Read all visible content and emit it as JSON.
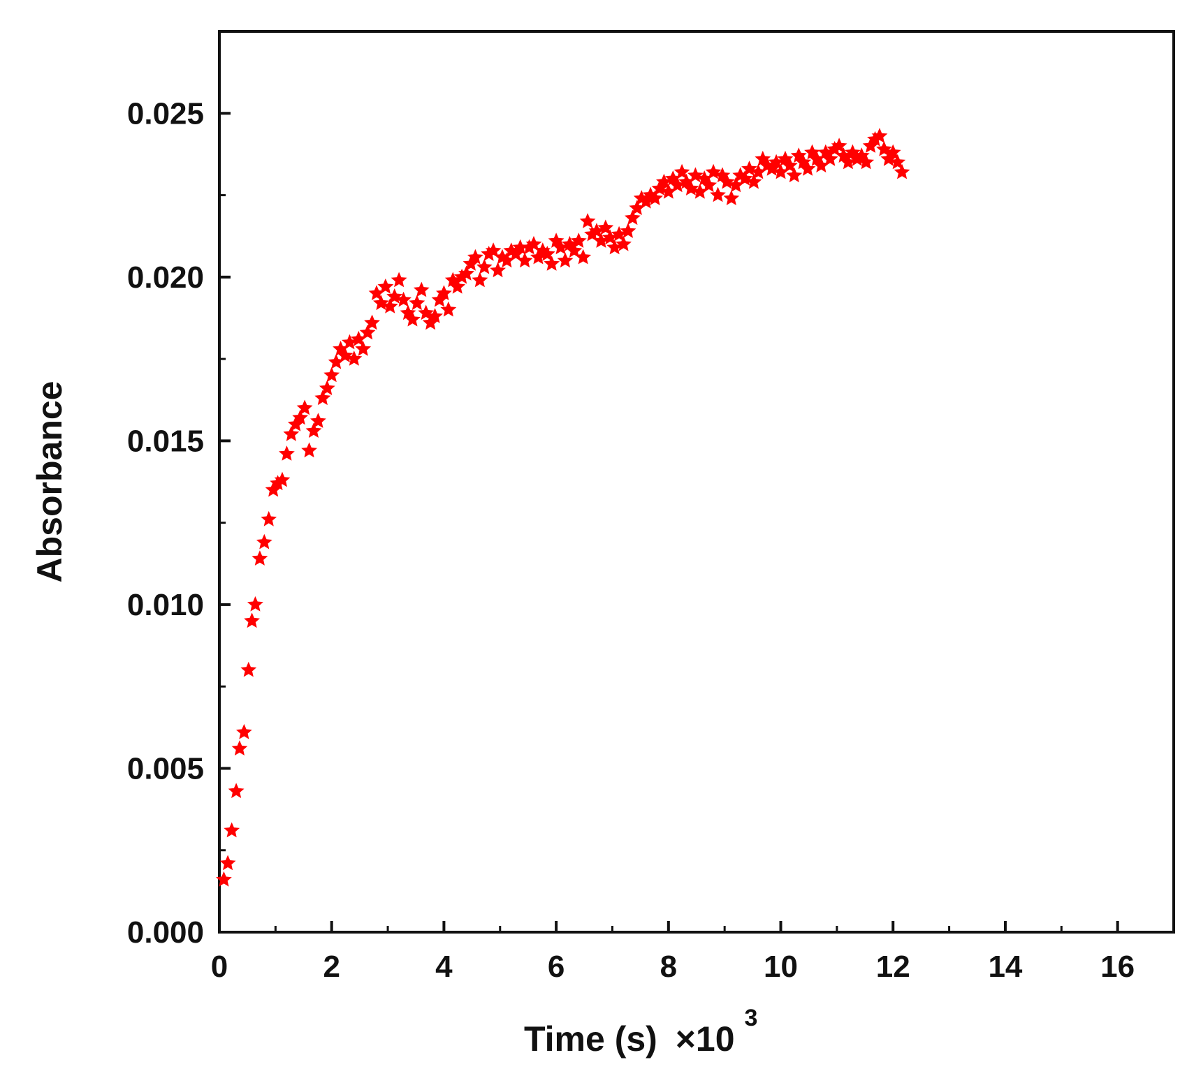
{
  "chart_data": {
    "type": "scatter",
    "title": "",
    "xlabel": "Time (s)",
    "xlabel_multiplier": "×10",
    "xlabel_exponent": "3",
    "ylabel": "Absorbance",
    "xlim": [
      0,
      17
    ],
    "ylim": [
      0,
      0.0275
    ],
    "x_ticks": [
      0,
      2,
      4,
      6,
      8,
      10,
      12,
      14,
      16
    ],
    "x_tick_labels": [
      "0",
      "2",
      "4",
      "6",
      "8",
      "10",
      "12",
      "14",
      "16"
    ],
    "y_ticks": [
      0.0,
      0.005,
      0.01,
      0.015,
      0.02,
      0.025
    ],
    "y_tick_labels": [
      "0.000",
      "0.005",
      "0.010",
      "0.015",
      "0.020",
      "0.025"
    ],
    "grid": false,
    "legend": "none",
    "marker": "star",
    "colors": {
      "series": "#ff0000",
      "axis": "#111111"
    },
    "series": [
      {
        "x": [
          0.08,
          0.15,
          0.22,
          0.3,
          0.36,
          0.44,
          0.52,
          0.58,
          0.64,
          0.72,
          0.8,
          0.88,
          0.96,
          1.04,
          1.12,
          1.2,
          1.28,
          1.36,
          1.44,
          1.52,
          1.6,
          1.68,
          1.76,
          1.84,
          1.92,
          2.0,
          2.08,
          2.16,
          2.24,
          2.32,
          2.4,
          2.48,
          2.56,
          2.64,
          2.72,
          2.8,
          2.88,
          2.96,
          3.04,
          3.12,
          3.2,
          3.28,
          3.36,
          3.44,
          3.52,
          3.6,
          3.68,
          3.76,
          3.84,
          3.92,
          4.0,
          4.08,
          4.16,
          4.24,
          4.32,
          4.4,
          4.48,
          4.56,
          4.64,
          4.72,
          4.8,
          4.88,
          4.96,
          5.04,
          5.12,
          5.2,
          5.28,
          5.36,
          5.44,
          5.52,
          5.6,
          5.68,
          5.76,
          5.84,
          5.92,
          6.0,
          6.08,
          6.16,
          6.24,
          6.32,
          6.4,
          6.48,
          6.56,
          6.64,
          6.72,
          6.8,
          6.88,
          6.96,
          7.04,
          7.12,
          7.2,
          7.28,
          7.36,
          7.44,
          7.52,
          7.6,
          7.68,
          7.76,
          7.84,
          7.92,
          8.0,
          8.08,
          8.16,
          8.24,
          8.32,
          8.4,
          8.48,
          8.56,
          8.64,
          8.72,
          8.8,
          8.88,
          8.96,
          9.04,
          9.12,
          9.2,
          9.28,
          9.36,
          9.44,
          9.52,
          9.6,
          9.68,
          9.76,
          9.84,
          9.92,
          10.0,
          10.08,
          10.16,
          10.24,
          10.32,
          10.4,
          10.48,
          10.56,
          10.64,
          10.72,
          10.8,
          10.88,
          10.96,
          11.04,
          11.12,
          11.2,
          11.28,
          11.36,
          11.44,
          11.52,
          11.6,
          11.68,
          11.76,
          11.84,
          11.92,
          12.0,
          12.08,
          12.16
        ],
        "y": [
          0.0016,
          0.0021,
          0.0031,
          0.0043,
          0.0056,
          0.0061,
          0.008,
          0.0095,
          0.01,
          0.0114,
          0.0119,
          0.0126,
          0.0135,
          0.0137,
          0.0138,
          0.0146,
          0.0152,
          0.0155,
          0.0157,
          0.016,
          0.0147,
          0.0153,
          0.0156,
          0.0163,
          0.0166,
          0.017,
          0.0174,
          0.0178,
          0.0176,
          0.018,
          0.0175,
          0.0181,
          0.0178,
          0.0183,
          0.0186,
          0.0195,
          0.0192,
          0.0197,
          0.0191,
          0.0194,
          0.0199,
          0.0193,
          0.0189,
          0.0187,
          0.0192,
          0.0196,
          0.0189,
          0.0186,
          0.0188,
          0.0193,
          0.0195,
          0.019,
          0.0199,
          0.0197,
          0.02,
          0.0201,
          0.0204,
          0.0206,
          0.0199,
          0.0203,
          0.0207,
          0.0208,
          0.0202,
          0.0206,
          0.0205,
          0.0208,
          0.0207,
          0.0209,
          0.0205,
          0.0209,
          0.021,
          0.0206,
          0.0208,
          0.0207,
          0.0204,
          0.0211,
          0.0209,
          0.0205,
          0.021,
          0.0208,
          0.0211,
          0.0206,
          0.0217,
          0.0213,
          0.0214,
          0.0211,
          0.0215,
          0.0212,
          0.0209,
          0.0213,
          0.021,
          0.0214,
          0.0218,
          0.0221,
          0.0224,
          0.0223,
          0.0225,
          0.0224,
          0.0227,
          0.0229,
          0.0226,
          0.023,
          0.0228,
          0.0232,
          0.0229,
          0.0227,
          0.0231,
          0.0226,
          0.023,
          0.0228,
          0.0232,
          0.0225,
          0.0231,
          0.0229,
          0.0224,
          0.0228,
          0.0231,
          0.023,
          0.0233,
          0.0229,
          0.0232,
          0.0236,
          0.0234,
          0.0233,
          0.0235,
          0.0232,
          0.0236,
          0.0234,
          0.0231,
          0.0237,
          0.0235,
          0.0233,
          0.0238,
          0.0236,
          0.0234,
          0.0238,
          0.0236,
          0.0239,
          0.024,
          0.0237,
          0.0235,
          0.0238,
          0.0236,
          0.0237,
          0.0235,
          0.024,
          0.0242,
          0.0243,
          0.0239,
          0.0236,
          0.0238,
          0.0235,
          0.0232
        ]
      }
    ]
  }
}
